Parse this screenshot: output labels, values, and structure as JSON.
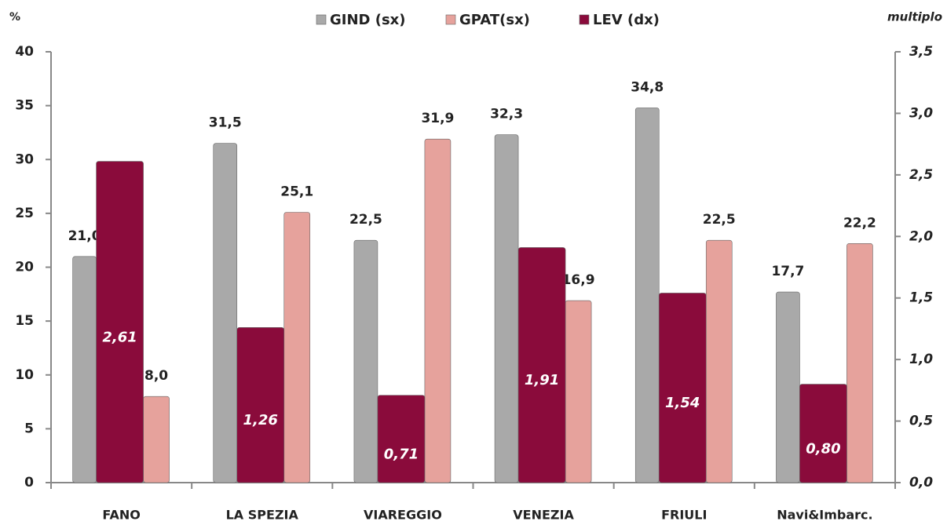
{
  "chart_data": {
    "type": "bar",
    "y_label": "%",
    "y2_label": "multiplo",
    "categories": [
      "FANO",
      "LA SPEZIA",
      "VIAREGGIO",
      "VENEZIA",
      "FRIULI",
      "Navi&Imbarc."
    ],
    "series": [
      {
        "name": "GIND (sx)",
        "color": "#a9a9a9",
        "values": [
          21.0,
          31.5,
          22.5,
          32.3,
          34.8,
          17.7
        ],
        "value_labels": [
          "21,0",
          "31,5",
          "22,5",
          "32,3",
          "34,8",
          "17,7"
        ]
      },
      {
        "name": "GPAT(sx)",
        "color": "#e6a29c",
        "values": [
          8.0,
          25.1,
          31.9,
          16.9,
          22.5,
          22.2
        ],
        "value_labels": [
          "8,0",
          "25,1",
          "31,9",
          "16,9",
          "22,5",
          "22,2"
        ]
      },
      {
        "name": "LEV (dx)",
        "color": "#8a0b3b",
        "axis": "y2",
        "values": [
          2.61,
          1.26,
          0.71,
          1.91,
          1.54,
          0.8
        ],
        "value_labels": [
          "2,61",
          "1,26",
          "0,71",
          "1,91",
          "1,54",
          "0,80"
        ]
      }
    ],
    "ylim": [
      0,
      40
    ],
    "yticks": [
      0,
      5,
      10,
      15,
      20,
      25,
      30,
      35,
      40
    ],
    "y2lim": [
      0,
      3.5
    ],
    "y2ticks": [
      {
        "value": 0,
        "label": "0,0"
      },
      {
        "value": 0.5,
        "label": "0,5"
      },
      {
        "value": 1.0,
        "label": "1,0"
      },
      {
        "value": 1.5,
        "label": "1,5"
      },
      {
        "value": 2.0,
        "label": "2,0"
      },
      {
        "value": 2.5,
        "label": "2,5"
      },
      {
        "value": 3.0,
        "label": "3,0"
      },
      {
        "value": 3.5,
        "label": "3,5"
      }
    ],
    "legend": "top"
  }
}
